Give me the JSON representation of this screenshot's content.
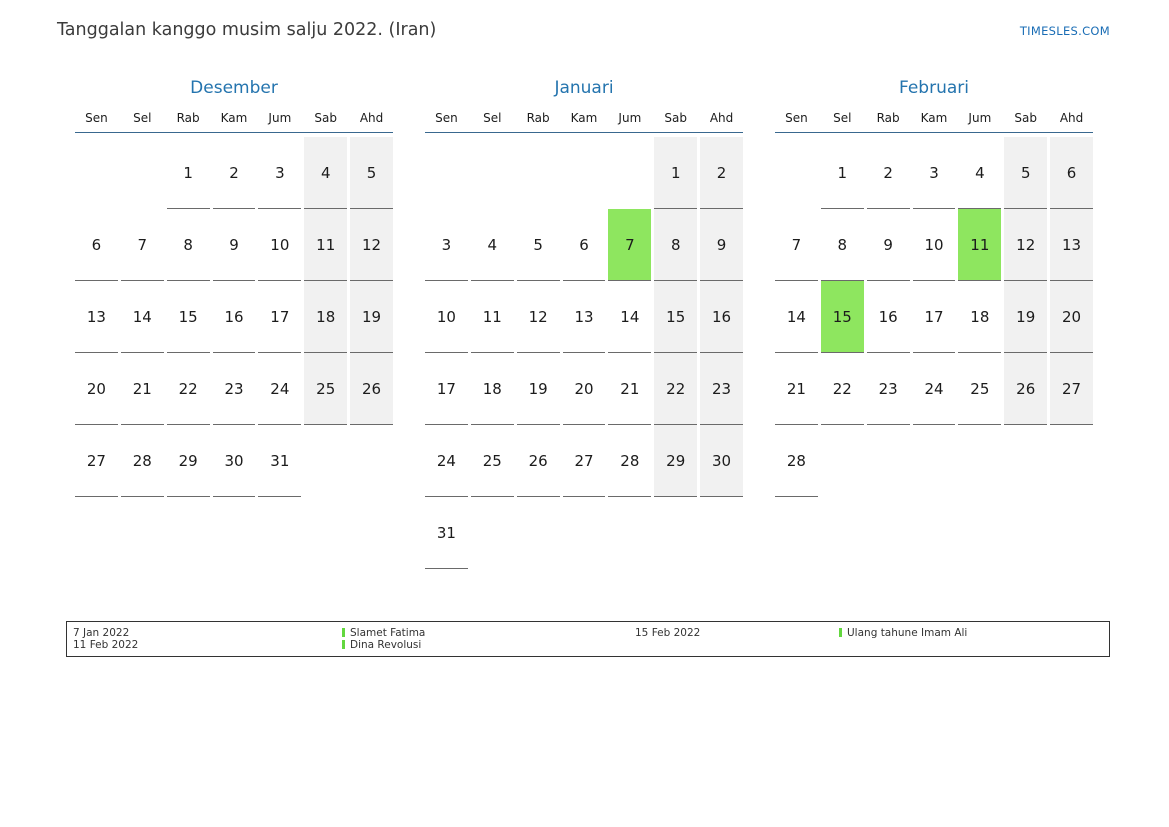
{
  "page": {
    "title": "Tanggalan kanggo musim salju 2022. (Iran)",
    "site": "TIMESLES.COM"
  },
  "colors": {
    "accent_blue": "#2474ae",
    "link_blue": "#1a6db5",
    "holiday_green": "#8ee65f",
    "legend_marker_green": "#63d73f",
    "weekend_gray": "#f1f1f1"
  },
  "calendar": {
    "day_headers": [
      "Sen",
      "Sel",
      "Rab",
      "Kam",
      "Jum",
      "Sab",
      "Ahd"
    ],
    "months": [
      {
        "name": "Desember",
        "highlights": [],
        "weeks": [
          [
            null,
            null,
            1,
            2,
            3,
            4,
            5
          ],
          [
            6,
            7,
            8,
            9,
            10,
            11,
            12
          ],
          [
            13,
            14,
            15,
            16,
            17,
            18,
            19
          ],
          [
            20,
            21,
            22,
            23,
            24,
            25,
            26
          ],
          [
            27,
            28,
            29,
            30,
            31,
            null,
            null
          ]
        ]
      },
      {
        "name": "Januari",
        "highlights": [
          7
        ],
        "weeks": [
          [
            null,
            null,
            null,
            null,
            null,
            1,
            2
          ],
          [
            3,
            4,
            5,
            6,
            7,
            8,
            9
          ],
          [
            10,
            11,
            12,
            13,
            14,
            15,
            16
          ],
          [
            17,
            18,
            19,
            20,
            21,
            22,
            23
          ],
          [
            24,
            25,
            26,
            27,
            28,
            29,
            30
          ],
          [
            31,
            null,
            null,
            null,
            null,
            null,
            null
          ]
        ]
      },
      {
        "name": "Februari",
        "highlights": [
          11,
          15
        ],
        "weeks": [
          [
            null,
            1,
            2,
            3,
            4,
            5,
            6
          ],
          [
            7,
            8,
            9,
            10,
            11,
            12,
            13
          ],
          [
            14,
            15,
            16,
            17,
            18,
            19,
            20
          ],
          [
            21,
            22,
            23,
            24,
            25,
            26,
            27
          ],
          [
            28,
            null,
            null,
            null,
            null,
            null,
            null
          ]
        ]
      }
    ]
  },
  "legend": {
    "groups": [
      {
        "dates": [
          "7 Jan 2022",
          "11 Feb 2022"
        ],
        "names": [
          "Slamet Fatima",
          "Dina Revolusi"
        ]
      },
      {
        "dates": [
          "15 Feb 2022"
        ],
        "names": [
          "Ulang tahune Imam Ali"
        ]
      }
    ]
  }
}
